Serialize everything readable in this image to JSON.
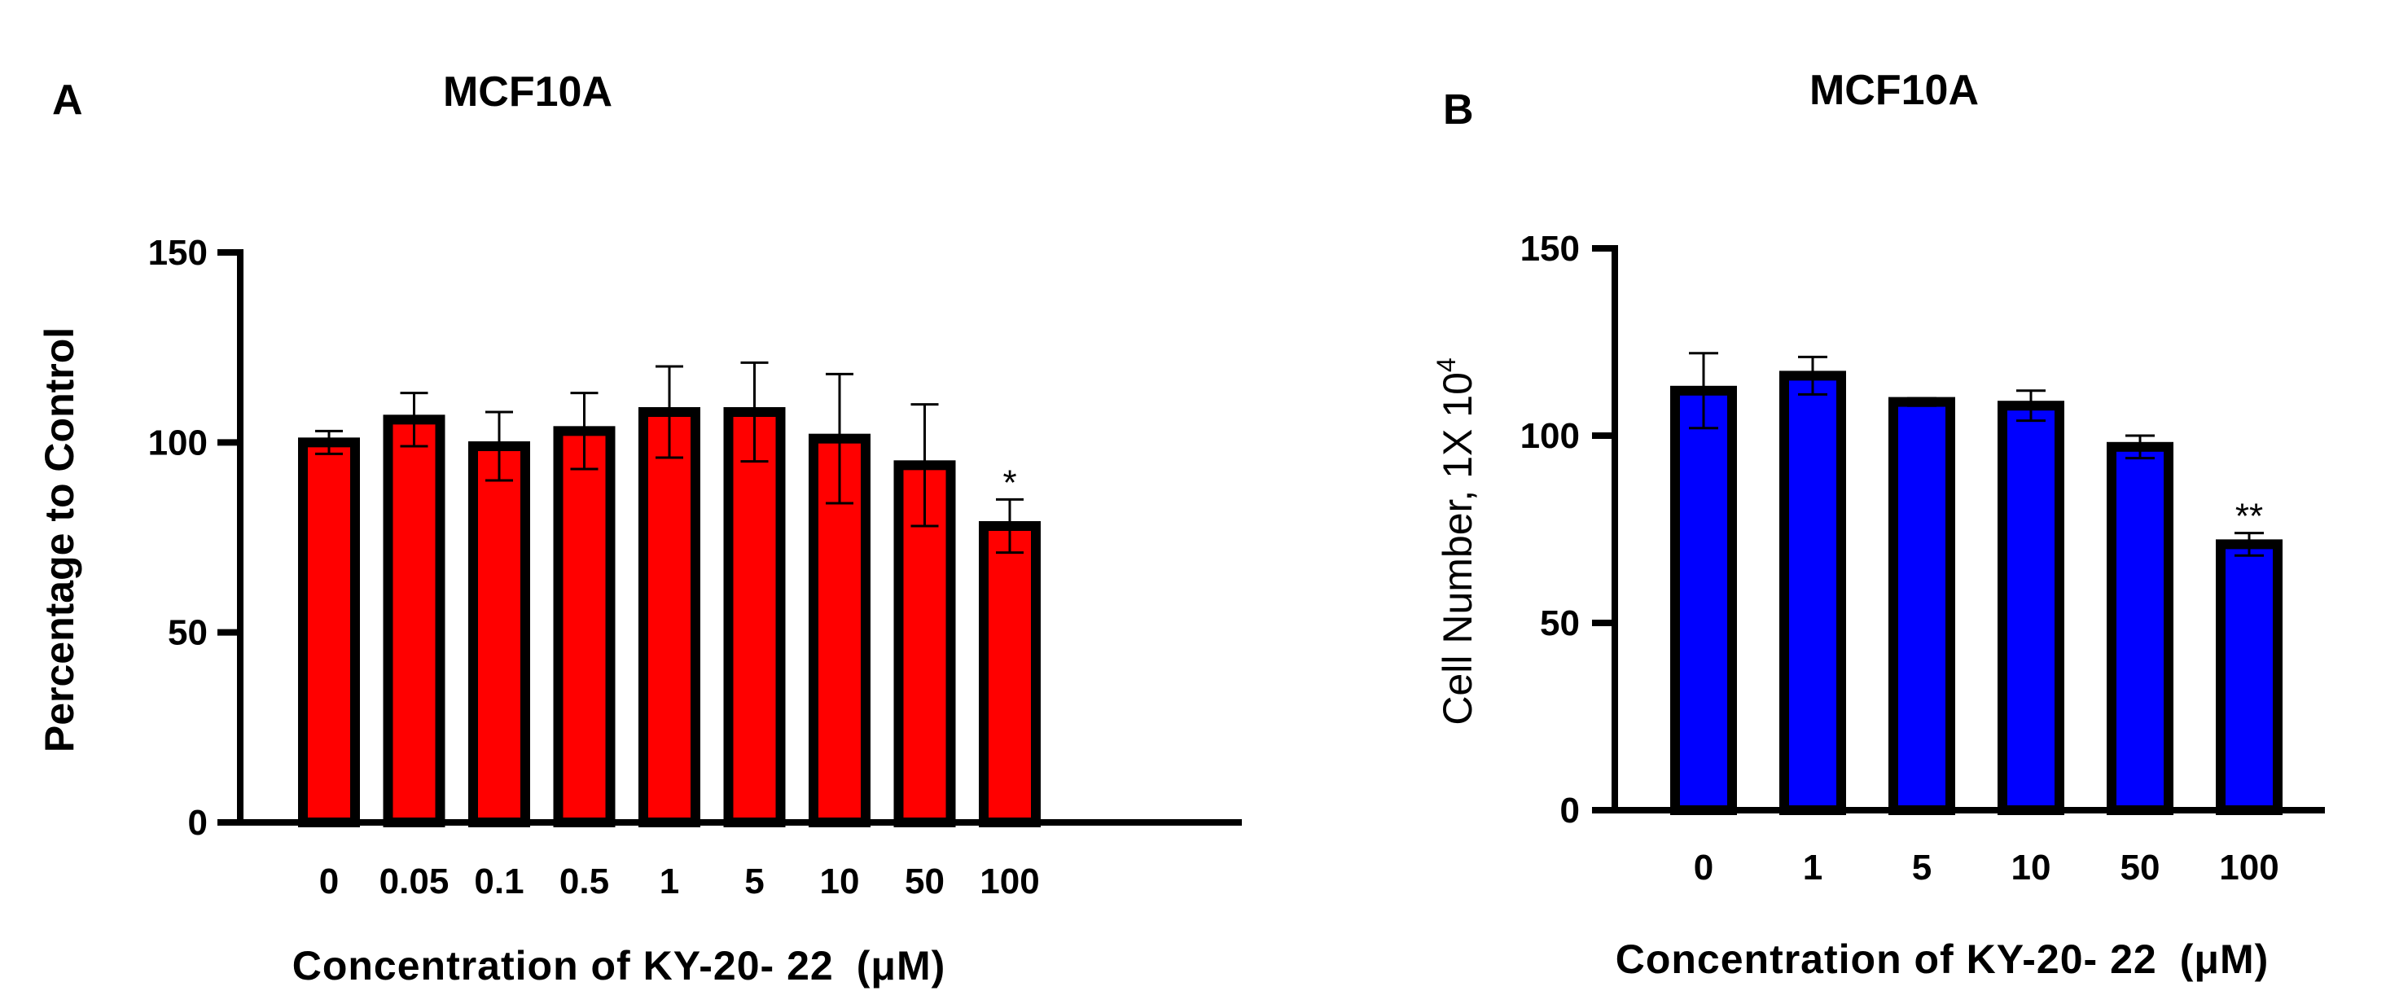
{
  "chart_data": [
    {
      "panel": "A",
      "type": "bar",
      "title": "MCF10A",
      "xlabel": "Concentration of KY-20- 22",
      "xlabel_unit": "(μM)",
      "ylabel": "Percentage to Control",
      "ylim": [
        0,
        150
      ],
      "yticks": [
        0,
        50,
        100,
        150
      ],
      "categories": [
        "0",
        "0.05",
        "0.1",
        "0.5",
        "1",
        "5",
        "10",
        "50",
        "100"
      ],
      "values": [
        100,
        106,
        99,
        103,
        108,
        108,
        101,
        94,
        78
      ],
      "errors": [
        3,
        7,
        9,
        10,
        12,
        13,
        17,
        16,
        7
      ],
      "significance": [
        "",
        "",
        "",
        "",
        "",
        "",
        "",
        "",
        "*"
      ],
      "bar_color": "#ff0000"
    },
    {
      "panel": "B",
      "type": "bar",
      "title": "MCF10A",
      "xlabel": "Concentration of KY-20- 22",
      "xlabel_unit": "(μM)",
      "ylabel": "Cell Number, 1X 10",
      "ylabel_sup": "4",
      "ylim": [
        0,
        150
      ],
      "yticks": [
        0,
        50,
        100,
        150
      ],
      "categories": [
        "0",
        "1",
        "5",
        "10",
        "50",
        "100"
      ],
      "values": [
        112,
        116,
        109,
        108,
        97,
        71
      ],
      "errors": [
        10,
        5,
        1,
        4,
        3,
        3
      ],
      "significance": [
        "",
        "",
        "",
        "",
        "",
        "**"
      ],
      "bar_color": "#0000ff"
    }
  ]
}
